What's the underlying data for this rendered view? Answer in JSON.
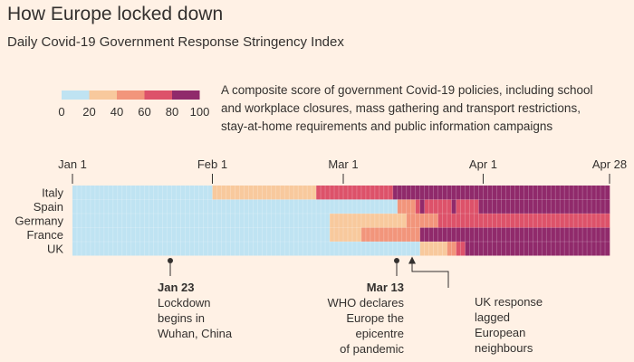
{
  "title": "How Europe locked down",
  "subtitle": "Daily Covid-19 Government Response Stringency Index",
  "description": "A composite score of government Covid-19 policies, including school and workplace closures, mass gathering and transport restrictions, stay-at-home requirements and public information campaigns",
  "colors": {
    "background": "#fff1e5",
    "bins": [
      "#bfe3f2",
      "#f8c99d",
      "#f2957b",
      "#dd526a",
      "#902a6b"
    ],
    "text": "#33302e"
  },
  "chart_data": {
    "type": "heatmap",
    "title": "How Europe locked down",
    "subtitle": "Daily Covid-19 Government Response Stringency Index",
    "legend": {
      "ticks": [
        "0",
        "20",
        "40",
        "60",
        "80",
        "100"
      ],
      "bins": [
        [
          0,
          20
        ],
        [
          20,
          40
        ],
        [
          40,
          60
        ],
        [
          60,
          80
        ],
        [
          80,
          100
        ]
      ]
    },
    "x_axis": {
      "start_day": 1,
      "end_day": 119,
      "ticks": [
        {
          "label": "Jan 1",
          "day": 1
        },
        {
          "label": "Feb 1",
          "day": 32
        },
        {
          "label": "Mar 1",
          "day": 61
        },
        {
          "label": "Apr 1",
          "day": 92
        },
        {
          "label": "Apr 28",
          "day": 119
        }
      ]
    },
    "countries": [
      {
        "name": "Italy",
        "segments": [
          {
            "from": 1,
            "to": 32,
            "value": 10
          },
          {
            "from": 32,
            "to": 55,
            "value": 30
          },
          {
            "from": 55,
            "to": 72,
            "value": 70
          },
          {
            "from": 72,
            "to": 120,
            "value": 90
          }
        ]
      },
      {
        "name": "Spain",
        "segments": [
          {
            "from": 1,
            "to": 73,
            "value": 10
          },
          {
            "from": 73,
            "to": 77,
            "value": 50
          },
          {
            "from": 77,
            "to": 78,
            "value": 70
          },
          {
            "from": 78,
            "to": 79,
            "value": 90
          },
          {
            "from": 79,
            "to": 85,
            "value": 70
          },
          {
            "from": 85,
            "to": 86,
            "value": 90
          },
          {
            "from": 86,
            "to": 91,
            "value": 70
          },
          {
            "from": 91,
            "to": 120,
            "value": 90
          }
        ]
      },
      {
        "name": "Germany",
        "segments": [
          {
            "from": 1,
            "to": 58,
            "value": 10
          },
          {
            "from": 58,
            "to": 75,
            "value": 30
          },
          {
            "from": 75,
            "to": 82,
            "value": 50
          },
          {
            "from": 82,
            "to": 87,
            "value": 70
          },
          {
            "from": 87,
            "to": 120,
            "value": 70
          }
        ]
      },
      {
        "name": "France",
        "segments": [
          {
            "from": 1,
            "to": 58,
            "value": 10
          },
          {
            "from": 58,
            "to": 65,
            "value": 30
          },
          {
            "from": 65,
            "to": 78,
            "value": 50
          },
          {
            "from": 78,
            "to": 120,
            "value": 90
          }
        ]
      },
      {
        "name": "UK",
        "segments": [
          {
            "from": 1,
            "to": 78,
            "value": 10
          },
          {
            "from": 78,
            "to": 84,
            "value": 30
          },
          {
            "from": 84,
            "to": 86,
            "value": 50
          },
          {
            "from": 86,
            "to": 88,
            "value": 70
          },
          {
            "from": 88,
            "to": 120,
            "value": 90
          }
        ]
      }
    ],
    "annotations": [
      {
        "date": "Jan 23",
        "day": 23,
        "lines": [
          "Lockdown",
          "begins in",
          "Wuhan, China"
        ],
        "align": "start"
      },
      {
        "date": "Mar 13",
        "day": 73,
        "lines": [
          "WHO declares",
          "Europe the",
          "epicentre",
          "of pandemic"
        ],
        "align": "end"
      },
      {
        "date": "",
        "day": 76,
        "lines": [
          "UK response",
          "lagged",
          "European",
          "neighbours"
        ],
        "align": "arrow-elbow"
      }
    ]
  }
}
